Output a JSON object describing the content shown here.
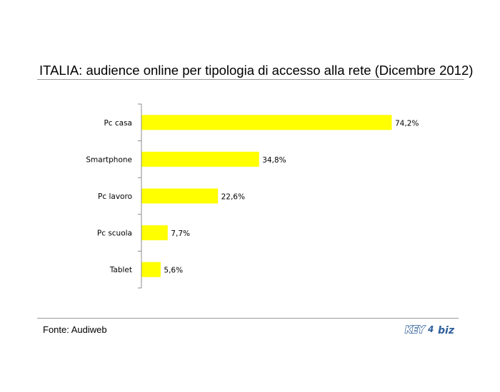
{
  "slide": {
    "title": "ITALIA: audience online per tipologia di accesso alla rete (Dicembre 2012)",
    "source": "Fonte: Audiweb",
    "logo": {
      "key": "KEY",
      "mark": "4",
      "biz": "biz"
    }
  },
  "colors": {
    "bar": "#FFFF00",
    "axis": "#8c8c8c",
    "rule": "#9a9a9a",
    "logo": "#2f5f9a"
  },
  "chart_data": {
    "type": "bar",
    "orientation": "horizontal",
    "categories": [
      "Pc casa",
      "Smartphone",
      "Pc lavoro",
      "Pc scuola",
      "Tablet"
    ],
    "values": [
      74.2,
      34.8,
      22.6,
      7.7,
      5.6
    ],
    "data_labels": [
      "74,2%",
      "34,8%",
      "22,6%",
      "7,7%",
      "5,6%"
    ],
    "title": "ITALIA: audience online per tipologia di accesso alla rete (Dicembre 2012)",
    "xlabel": "",
    "ylabel": "",
    "xlim": [
      0,
      100
    ],
    "grid": false,
    "legend": "none"
  }
}
